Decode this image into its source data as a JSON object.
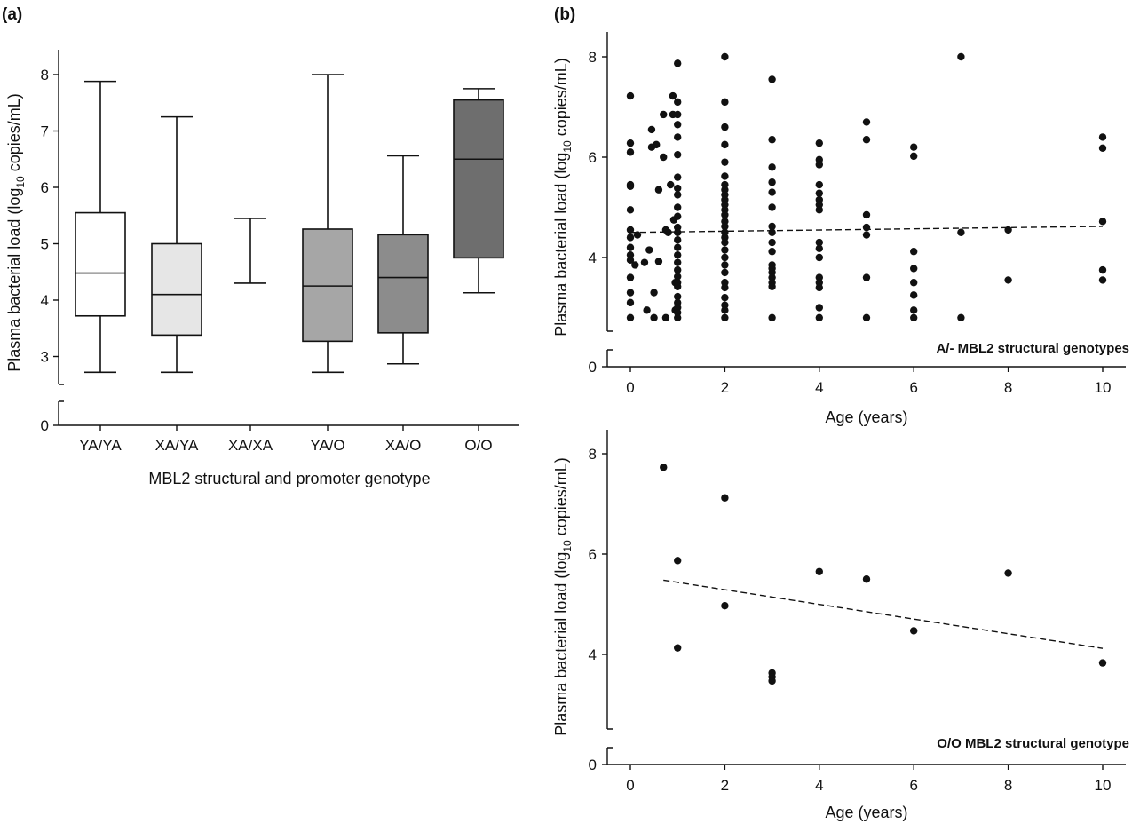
{
  "chart_data": [
    {
      "panel_label": "(a)",
      "type": "box",
      "xlabel": "MBL2 structural and promoter genotype",
      "ylabel_main": "Plasma bacterial load (log",
      "ylabel_sub": "10",
      "ylabel_end": " copies/mL)",
      "y_ticks": [
        "0",
        "3",
        "4",
        "5",
        "6",
        "7",
        "8"
      ],
      "categories": [
        "YA/YA",
        "XA/YA",
        "XA/XA",
        "YA/O",
        "XA/O",
        "O/O"
      ],
      "boxes": [
        {
          "min": 2.72,
          "q1": 3.72,
          "median": 4.48,
          "q3": 5.55,
          "max": 7.88,
          "fill": "#ffffff"
        },
        {
          "min": 2.72,
          "q1": 3.38,
          "median": 4.1,
          "q3": 5.0,
          "max": 7.25,
          "fill": "#e6e6e6"
        },
        {
          "min": 4.3,
          "q1": null,
          "median": null,
          "q3": null,
          "max": 5.45,
          "fill": "#ffffff"
        },
        {
          "min": 2.72,
          "q1": 3.27,
          "median": 4.25,
          "q3": 5.26,
          "max": 8.0,
          "fill": "#a6a6a6"
        },
        {
          "min": 2.87,
          "q1": 3.42,
          "median": 4.4,
          "q3": 5.16,
          "max": 6.56,
          "fill": "#8c8c8c"
        },
        {
          "min": 4.13,
          "q1": 4.75,
          "median": 6.5,
          "q3": 7.55,
          "max": 7.75,
          "fill": "#6e6e6e"
        }
      ]
    },
    {
      "panel_label": "(b)",
      "type": "scatter",
      "annotation": "A/- MBL2 structural genotypes",
      "xlabel": "Age (years)",
      "ylabel_main": "Plasma bacterial load (log",
      "ylabel_sub": "10",
      "ylabel_end": " copies/mL)",
      "x_ticks": [
        "0",
        "2",
        "4",
        "6",
        "8",
        "10"
      ],
      "y_ticks": [
        "0",
        "4",
        "6",
        "8"
      ],
      "trend": [
        [
          0,
          4.5
        ],
        [
          10,
          4.62
        ]
      ],
      "points": [
        [
          0,
          7.22
        ],
        [
          0,
          6.28
        ],
        [
          0,
          6.1
        ],
        [
          0,
          5.45
        ],
        [
          0,
          5.42
        ],
        [
          0,
          4.95
        ],
        [
          0,
          4.55
        ],
        [
          0,
          4.4
        ],
        [
          0,
          4.2
        ],
        [
          0,
          4.05
        ],
        [
          0,
          3.95
        ],
        [
          0,
          3.6
        ],
        [
          0,
          3.3
        ],
        [
          0,
          3.1
        ],
        [
          0,
          2.8
        ],
        [
          0.1,
          3.85
        ],
        [
          0.15,
          4.45
        ],
        [
          0.3,
          3.9
        ],
        [
          0.35,
          2.95
        ],
        [
          0.4,
          4.15
        ],
        [
          0.45,
          6.55
        ],
        [
          0.45,
          6.2
        ],
        [
          0.5,
          3.3
        ],
        [
          0.5,
          2.8
        ],
        [
          0.55,
          6.25
        ],
        [
          0.6,
          5.35
        ],
        [
          0.6,
          3.92
        ],
        [
          0.7,
          6.85
        ],
        [
          0.7,
          6.0
        ],
        [
          0.75,
          2.8
        ],
        [
          0.75,
          4.55
        ],
        [
          0.8,
          4.5
        ],
        [
          0.85,
          5.45
        ],
        [
          0.9,
          7.22
        ],
        [
          0.9,
          6.85
        ],
        [
          0.92,
          4.75
        ],
        [
          0.95,
          3.5
        ],
        [
          0.95,
          2.95
        ],
        [
          1,
          7.87
        ],
        [
          1,
          7.1
        ],
        [
          1,
          6.85
        ],
        [
          1,
          6.65
        ],
        [
          1,
          6.4
        ],
        [
          1,
          6.05
        ],
        [
          1,
          5.6
        ],
        [
          1,
          5.38
        ],
        [
          1,
          5.25
        ],
        [
          1,
          5.0
        ],
        [
          1,
          4.82
        ],
        [
          1,
          4.6
        ],
        [
          1,
          4.5
        ],
        [
          1,
          4.35
        ],
        [
          1,
          4.2
        ],
        [
          1,
          4.05
        ],
        [
          1,
          3.9
        ],
        [
          1,
          3.75
        ],
        [
          1,
          3.62
        ],
        [
          1,
          3.5
        ],
        [
          1,
          3.42
        ],
        [
          1,
          3.22
        ],
        [
          1,
          3.1
        ],
        [
          1,
          3.0
        ],
        [
          1,
          2.9
        ],
        [
          1,
          2.8
        ],
        [
          2,
          8.0
        ],
        [
          2,
          7.1
        ],
        [
          2,
          6.6
        ],
        [
          2,
          6.25
        ],
        [
          2,
          5.9
        ],
        [
          2,
          5.62
        ],
        [
          2,
          5.45
        ],
        [
          2,
          5.35
        ],
        [
          2,
          5.25
        ],
        [
          2,
          5.15
        ],
        [
          2,
          5.05
        ],
        [
          2,
          4.95
        ],
        [
          2,
          4.85
        ],
        [
          2,
          4.72
        ],
        [
          2,
          4.62
        ],
        [
          2,
          4.5
        ],
        [
          2,
          4.4
        ],
        [
          2,
          4.3
        ],
        [
          2,
          4.15
        ],
        [
          2,
          4.0
        ],
        [
          2,
          3.85
        ],
        [
          2,
          3.7
        ],
        [
          2,
          3.5
        ],
        [
          2,
          3.4
        ],
        [
          2,
          3.2
        ],
        [
          2,
          3.05
        ],
        [
          2,
          2.95
        ],
        [
          2,
          2.8
        ],
        [
          3,
          7.55
        ],
        [
          3,
          6.35
        ],
        [
          3,
          5.8
        ],
        [
          3,
          5.5
        ],
        [
          3,
          5.3
        ],
        [
          3,
          5.0
        ],
        [
          3,
          4.62
        ],
        [
          3,
          4.5
        ],
        [
          3,
          4.3
        ],
        [
          3,
          4.12
        ],
        [
          3,
          3.85
        ],
        [
          3,
          3.78
        ],
        [
          3,
          3.7
        ],
        [
          3,
          3.6
        ],
        [
          3,
          3.5
        ],
        [
          3,
          3.42
        ],
        [
          3,
          2.8
        ],
        [
          4,
          6.28
        ],
        [
          4,
          5.95
        ],
        [
          4,
          5.85
        ],
        [
          4,
          5.45
        ],
        [
          4,
          5.28
        ],
        [
          4,
          5.15
        ],
        [
          4,
          5.05
        ],
        [
          4,
          4.95
        ],
        [
          4,
          4.3
        ],
        [
          4,
          4.18
        ],
        [
          4,
          4.0
        ],
        [
          4,
          3.6
        ],
        [
          4,
          3.5
        ],
        [
          4,
          3.4
        ],
        [
          4,
          3.0
        ],
        [
          4,
          2.8
        ],
        [
          5,
          6.7
        ],
        [
          5,
          6.35
        ],
        [
          5,
          4.85
        ],
        [
          5,
          4.6
        ],
        [
          5,
          4.45
        ],
        [
          5,
          3.6
        ],
        [
          5,
          2.8
        ],
        [
          6,
          6.2
        ],
        [
          6,
          6.02
        ],
        [
          6,
          4.12
        ],
        [
          6,
          3.78
        ],
        [
          6,
          3.5
        ],
        [
          6,
          3.25
        ],
        [
          6,
          2.95
        ],
        [
          6,
          2.8
        ],
        [
          7,
          8.0
        ],
        [
          7,
          4.5
        ],
        [
          7,
          2.8
        ],
        [
          8,
          4.55
        ],
        [
          8,
          3.55
        ],
        [
          10,
          6.4
        ],
        [
          10,
          6.18
        ],
        [
          10,
          4.72
        ],
        [
          10,
          3.75
        ],
        [
          10,
          3.55
        ]
      ]
    },
    {
      "type": "scatter",
      "annotation": "O/O MBL2 structural genotype",
      "xlabel": "Age (years)",
      "ylabel_main": "Plasma bacterial load (log",
      "ylabel_sub": "10",
      "ylabel_end": " copies/mL)",
      "x_ticks": [
        "0",
        "2",
        "4",
        "6",
        "8",
        "10"
      ],
      "y_ticks": [
        "0",
        "4",
        "6",
        "8"
      ],
      "trend": [
        [
          0.7,
          5.48
        ],
        [
          10,
          4.12
        ]
      ],
      "points": [
        [
          0.7,
          7.73
        ],
        [
          1,
          5.87
        ],
        [
          1,
          4.13
        ],
        [
          2,
          7.12
        ],
        [
          2,
          4.97
        ],
        [
          3,
          3.63
        ],
        [
          3,
          3.55
        ],
        [
          3,
          3.47
        ],
        [
          4,
          5.65
        ],
        [
          5,
          5.5
        ],
        [
          6,
          4.47
        ],
        [
          8,
          5.62
        ],
        [
          10,
          3.83
        ]
      ]
    }
  ]
}
